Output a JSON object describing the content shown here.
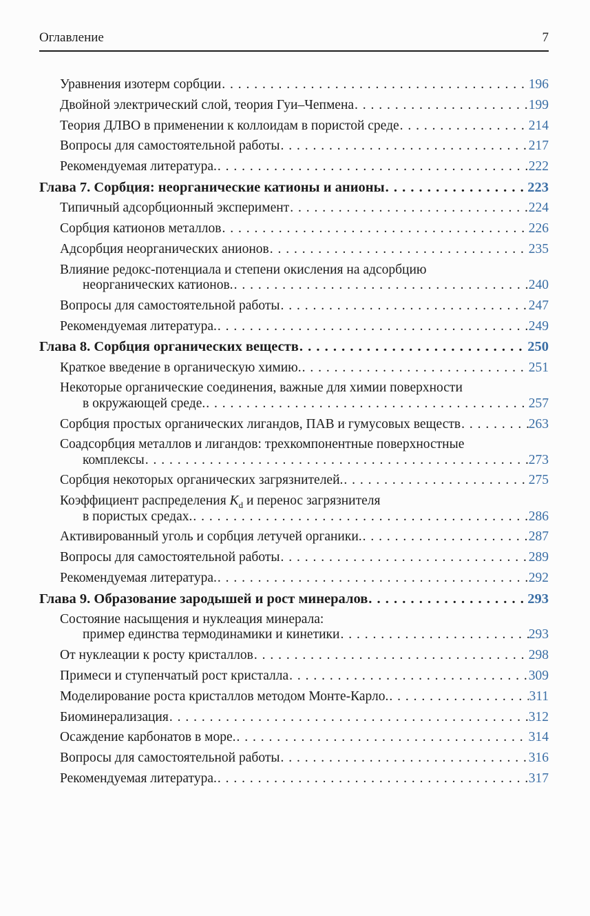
{
  "header": {
    "title": "Оглавление",
    "page_number": "7"
  },
  "colors": {
    "text": "#1c1c1c",
    "page_link": "#3a6ea5",
    "background": "#fcfcfc"
  },
  "toc": {
    "items": [
      {
        "type": "item",
        "lines": [
          {
            "text": "Уравнения изотерм сорбции",
            "page": "196"
          }
        ]
      },
      {
        "type": "item",
        "lines": [
          {
            "text": "Двойной электрический слой, теория Гуи–Чепмена",
            "page": "199"
          }
        ]
      },
      {
        "type": "item",
        "lines": [
          {
            "text": "Теория ДЛВО в применении к коллоидам в пористой среде",
            "page": "214"
          }
        ]
      },
      {
        "type": "item",
        "lines": [
          {
            "text": "Вопросы для самостоятельной работы",
            "page": "217"
          }
        ]
      },
      {
        "type": "item",
        "lines": [
          {
            "text": "Рекомендуемая литература.",
            "page": "222"
          }
        ]
      },
      {
        "type": "chapter",
        "lines": [
          {
            "text": "Глава 7. Сорбция: неорганические катионы и анионы",
            "page": "223"
          }
        ]
      },
      {
        "type": "item",
        "lines": [
          {
            "text": "Типичный адсорбционный эксперимент",
            "page": "224"
          }
        ]
      },
      {
        "type": "item",
        "lines": [
          {
            "text": "Сорбция катионов металлов",
            "page": "226"
          }
        ]
      },
      {
        "type": "item",
        "lines": [
          {
            "text": "Адсорбция неорганических анионов",
            "page": "235"
          }
        ]
      },
      {
        "type": "item",
        "lines": [
          {
            "text": "Влияние редокс-потенциала и степени окисления на адсорбцию"
          },
          {
            "text": "неорганических катионов.",
            "page": "240",
            "indent": true
          }
        ]
      },
      {
        "type": "item",
        "lines": [
          {
            "text": "Вопросы для самостоятельной работы",
            "page": "247"
          }
        ]
      },
      {
        "type": "item",
        "lines": [
          {
            "text": "Рекомендуемая литература.",
            "page": "249"
          }
        ]
      },
      {
        "type": "chapter",
        "lines": [
          {
            "text": "Глава 8. Сорбция органических веществ",
            "page": "250"
          }
        ]
      },
      {
        "type": "item",
        "lines": [
          {
            "text": "Краткое введение в органическую химию.",
            "page": "251"
          }
        ]
      },
      {
        "type": "item",
        "lines": [
          {
            "text": "Некоторые органические соединения, важные для химии поверхности"
          },
          {
            "text": "в окружающей среде.",
            "page": "257",
            "indent": true
          }
        ]
      },
      {
        "type": "item",
        "lines": [
          {
            "text": "Сорбция простых органических лигандов, ПАВ и гумусовых веществ",
            "page": "263"
          }
        ]
      },
      {
        "type": "item",
        "lines": [
          {
            "text": "Соадсорбция металлов и лигандов: трехкомпонентные поверхностные"
          },
          {
            "text": "комплексы",
            "page": "273",
            "indent": true
          }
        ]
      },
      {
        "type": "item",
        "lines": [
          {
            "text": "Сорбция некоторых органических загрязнителей.",
            "page": "275"
          }
        ]
      },
      {
        "type": "item",
        "lines": [
          {
            "parts": [
              {
                "t": "Коэффициент распределения "
              },
              {
                "t": "K",
                "i": true
              },
              {
                "t": "d",
                "sub": true
              },
              {
                "t": " и перенос загрязнителя"
              }
            ]
          },
          {
            "text": "в пористых средах.",
            "page": "286",
            "indent": true
          }
        ]
      },
      {
        "type": "item",
        "lines": [
          {
            "text": "Активированный уголь и сорбция летучей органики.",
            "page": "287"
          }
        ]
      },
      {
        "type": "item",
        "lines": [
          {
            "text": "Вопросы для самостоятельной работы",
            "page": "289"
          }
        ]
      },
      {
        "type": "item",
        "lines": [
          {
            "text": "Рекомендуемая литература.",
            "page": "292"
          }
        ]
      },
      {
        "type": "chapter",
        "lines": [
          {
            "text": "Глава 9. Образование зародышей и рост минералов",
            "page": "293"
          }
        ]
      },
      {
        "type": "item",
        "lines": [
          {
            "text": "Состояние насыщения и нуклеация минерала:"
          },
          {
            "text": "пример единства термодинамики и кинетики",
            "page": "293",
            "indent": true
          }
        ]
      },
      {
        "type": "item",
        "lines": [
          {
            "text": "От нуклеации к росту кристаллов",
            "page": "298"
          }
        ]
      },
      {
        "type": "item",
        "lines": [
          {
            "text": "Примеси и ступенчатый рост кристалла",
            "page": "309"
          }
        ]
      },
      {
        "type": "item",
        "lines": [
          {
            "text": "Моделирование роста кристаллов методом Монте-Карло.",
            "page": "311"
          }
        ]
      },
      {
        "type": "item",
        "lines": [
          {
            "text": "Биоминерализация",
            "page": "312"
          }
        ]
      },
      {
        "type": "item",
        "lines": [
          {
            "text": "Осаждение карбонатов в море.",
            "page": "314"
          }
        ]
      },
      {
        "type": "item",
        "lines": [
          {
            "text": "Вопросы для самостоятельной работы",
            "page": "316"
          }
        ]
      },
      {
        "type": "item",
        "lines": [
          {
            "text": "Рекомендуемая литература.",
            "page": "317"
          }
        ]
      }
    ]
  }
}
